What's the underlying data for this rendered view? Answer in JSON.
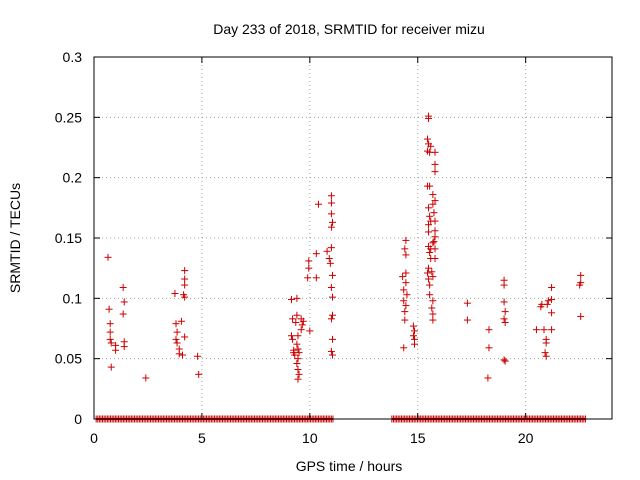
{
  "chart_data": {
    "type": "scatter",
    "title": "Day 233 of 2018, SRMTID for receiver mizu",
    "xlabel": "GPS time / hours",
    "ylabel": "SRMTID / TECUs",
    "xlim": [
      0,
      24
    ],
    "ylim": [
      0,
      0.3
    ],
    "xticks": [
      0,
      5,
      10,
      15,
      20
    ],
    "xtick_labels": [
      "0",
      "5",
      "10",
      "15",
      "20"
    ],
    "yticks": [
      0,
      0.05,
      0.1,
      0.15,
      0.2,
      0.25,
      0.3
    ],
    "ytick_labels": [
      "0",
      "0.05",
      "0.1",
      "0.15",
      "0.2",
      "0.25",
      "0.3"
    ],
    "grid": true,
    "marker": "+",
    "color": "#cc0000",
    "zero_ranges": [
      [
        0.1,
        11.1
      ],
      [
        13.8,
        22.8
      ]
    ],
    "series": [
      {
        "name": "SRMTID",
        "points": [
          [
            0.65,
            0.134
          ],
          [
            0.7,
            0.091
          ],
          [
            0.75,
            0.079
          ],
          [
            0.75,
            0.072
          ],
          [
            0.75,
            0.066
          ],
          [
            0.8,
            0.063
          ],
          [
            0.8,
            0.043
          ],
          [
            1.0,
            0.061
          ],
          [
            1.0,
            0.057
          ],
          [
            1.35,
            0.109
          ],
          [
            1.4,
            0.097
          ],
          [
            1.35,
            0.087
          ],
          [
            1.4,
            0.064
          ],
          [
            1.4,
            0.06
          ],
          [
            2.4,
            0.034
          ],
          [
            3.75,
            0.104
          ],
          [
            3.8,
            0.079
          ],
          [
            3.85,
            0.072
          ],
          [
            3.8,
            0.066
          ],
          [
            3.85,
            0.063
          ],
          [
            3.95,
            0.058
          ],
          [
            3.95,
            0.054
          ],
          [
            4.05,
            0.081
          ],
          [
            4.1,
            0.053
          ],
          [
            4.2,
            0.123
          ],
          [
            4.2,
            0.116
          ],
          [
            4.2,
            0.111
          ],
          [
            4.15,
            0.103
          ],
          [
            4.2,
            0.101
          ],
          [
            4.2,
            0.068
          ],
          [
            4.8,
            0.052
          ],
          [
            4.85,
            0.037
          ],
          [
            9.15,
            0.099
          ],
          [
            9.2,
            0.083
          ],
          [
            9.15,
            0.069
          ],
          [
            9.2,
            0.066
          ],
          [
            9.25,
            0.057
          ],
          [
            9.25,
            0.055
          ],
          [
            9.3,
            0.053
          ],
          [
            9.4,
            0.1
          ],
          [
            9.4,
            0.086
          ],
          [
            9.35,
            0.08
          ],
          [
            9.45,
            0.069
          ],
          [
            9.4,
            0.062
          ],
          [
            9.45,
            0.058
          ],
          [
            9.5,
            0.055
          ],
          [
            9.45,
            0.05
          ],
          [
            9.4,
            0.046
          ],
          [
            9.45,
            0.041
          ],
          [
            9.5,
            0.037
          ],
          [
            9.45,
            0.033
          ],
          [
            9.6,
            0.083
          ],
          [
            9.65,
            0.078
          ],
          [
            9.6,
            0.074
          ],
          [
            9.7,
            0.081
          ],
          [
            9.95,
            0.131
          ],
          [
            9.95,
            0.125
          ],
          [
            9.9,
            0.117
          ],
          [
            10.0,
            0.073
          ],
          [
            10.3,
            0.137
          ],
          [
            10.3,
            0.117
          ],
          [
            10.4,
            0.178
          ],
          [
            10.8,
            0.139
          ],
          [
            10.9,
            0.133
          ],
          [
            10.95,
            0.129
          ],
          [
            11.0,
            0.185
          ],
          [
            11.0,
            0.179
          ],
          [
            11.0,
            0.17
          ],
          [
            11.05,
            0.163
          ],
          [
            11.0,
            0.159
          ],
          [
            11.0,
            0.142
          ],
          [
            11.05,
            0.119
          ],
          [
            11.0,
            0.109
          ],
          [
            11.05,
            0.101
          ],
          [
            11.05,
            0.086
          ],
          [
            11.0,
            0.083
          ],
          [
            11.05,
            0.066
          ],
          [
            11.0,
            0.056
          ],
          [
            11.05,
            0.053
          ],
          [
            14.3,
            0.118
          ],
          [
            14.35,
            0.107
          ],
          [
            14.35,
            0.098
          ],
          [
            14.4,
            0.089
          ],
          [
            14.4,
            0.082
          ],
          [
            14.35,
            0.059
          ],
          [
            14.45,
            0.148
          ],
          [
            14.4,
            0.141
          ],
          [
            14.45,
            0.136
          ],
          [
            14.45,
            0.121
          ],
          [
            14.45,
            0.113
          ],
          [
            14.5,
            0.103
          ],
          [
            14.45,
            0.094
          ],
          [
            14.8,
            0.077
          ],
          [
            14.85,
            0.073
          ],
          [
            14.8,
            0.069
          ],
          [
            14.85,
            0.066
          ],
          [
            14.85,
            0.062
          ],
          [
            15.5,
            0.251
          ],
          [
            15.5,
            0.249
          ],
          [
            15.45,
            0.232
          ],
          [
            15.5,
            0.228
          ],
          [
            15.45,
            0.222
          ],
          [
            15.6,
            0.226
          ],
          [
            15.55,
            0.221
          ],
          [
            15.45,
            0.193
          ],
          [
            15.55,
            0.193
          ],
          [
            15.5,
            0.175
          ],
          [
            15.55,
            0.168
          ],
          [
            15.5,
            0.161
          ],
          [
            15.6,
            0.164
          ],
          [
            15.5,
            0.155
          ],
          [
            15.5,
            0.143
          ],
          [
            15.55,
            0.138
          ],
          [
            15.5,
            0.125
          ],
          [
            15.45,
            0.121
          ],
          [
            15.5,
            0.116
          ],
          [
            15.6,
            0.141
          ],
          [
            15.6,
            0.133
          ],
          [
            15.55,
            0.111
          ],
          [
            15.55,
            0.103
          ],
          [
            15.7,
            0.186
          ],
          [
            15.7,
            0.178
          ],
          [
            15.7,
            0.146
          ],
          [
            15.65,
            0.122
          ],
          [
            15.7,
            0.118
          ],
          [
            15.7,
            0.098
          ],
          [
            15.65,
            0.092
          ],
          [
            15.7,
            0.087
          ],
          [
            15.7,
            0.082
          ],
          [
            15.8,
            0.221
          ],
          [
            15.8,
            0.211
          ],
          [
            15.8,
            0.205
          ],
          [
            15.8,
            0.181
          ],
          [
            15.75,
            0.171
          ],
          [
            15.8,
            0.164
          ],
          [
            15.8,
            0.156
          ],
          [
            15.8,
            0.151
          ],
          [
            15.75,
            0.147
          ],
          [
            15.8,
            0.141
          ],
          [
            15.8,
            0.133
          ],
          [
            17.3,
            0.096
          ],
          [
            17.3,
            0.082
          ],
          [
            18.3,
            0.074
          ],
          [
            18.3,
            0.059
          ],
          [
            18.25,
            0.034
          ],
          [
            19.0,
            0.115
          ],
          [
            19.0,
            0.111
          ],
          [
            19.0,
            0.097
          ],
          [
            19.05,
            0.089
          ],
          [
            19.0,
            0.083
          ],
          [
            19.05,
            0.08
          ],
          [
            19.0,
            0.049
          ],
          [
            19.05,
            0.048
          ],
          [
            20.5,
            0.074
          ],
          [
            20.7,
            0.093
          ],
          [
            20.75,
            0.095
          ],
          [
            20.85,
            0.074
          ],
          [
            20.95,
            0.066
          ],
          [
            20.95,
            0.063
          ],
          [
            20.9,
            0.055
          ],
          [
            20.95,
            0.052
          ],
          [
            21.0,
            0.095
          ],
          [
            21.05,
            0.098
          ],
          [
            21.2,
            0.109
          ],
          [
            21.2,
            0.099
          ],
          [
            21.2,
            0.088
          ],
          [
            21.2,
            0.074
          ],
          [
            22.55,
            0.119
          ],
          [
            22.55,
            0.113
          ],
          [
            22.5,
            0.111
          ],
          [
            22.55,
            0.085
          ]
        ]
      }
    ]
  }
}
